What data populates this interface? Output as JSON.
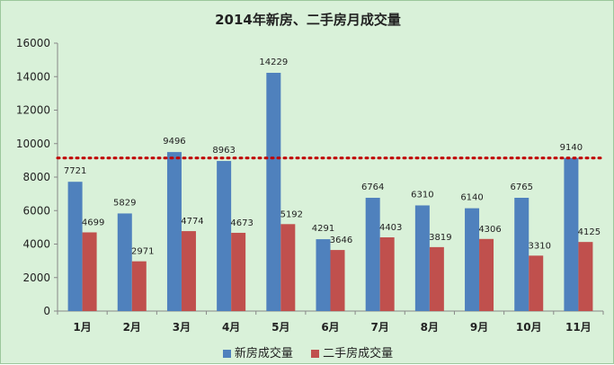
{
  "chart_data": {
    "type": "bar",
    "title": "2014年新房、二手房月成交量",
    "categories": [
      "1月",
      "2月",
      "3月",
      "4月",
      "5月",
      "6月",
      "7月",
      "8月",
      "9月",
      "10月",
      "11月"
    ],
    "series": [
      {
        "name": "新房成交量",
        "color": "#4f81bd",
        "values": [
          7721,
          5829,
          9496,
          8963,
          14229,
          4291,
          6764,
          6310,
          6140,
          6765,
          9140
        ]
      },
      {
        "name": "二手房成交量",
        "color": "#c0504d",
        "values": [
          4699,
          2971,
          4774,
          4673,
          5192,
          3646,
          4403,
          3819,
          4306,
          3310,
          4125
        ]
      }
    ],
    "ylim": [
      0,
      16000
    ],
    "yticks": [
      0,
      2000,
      4000,
      6000,
      8000,
      10000,
      12000,
      14000,
      16000
    ],
    "reference_line": {
      "value": 9140,
      "color": "#c00000",
      "style": "dotted"
    },
    "grid": false,
    "legend_position": "bottom"
  }
}
